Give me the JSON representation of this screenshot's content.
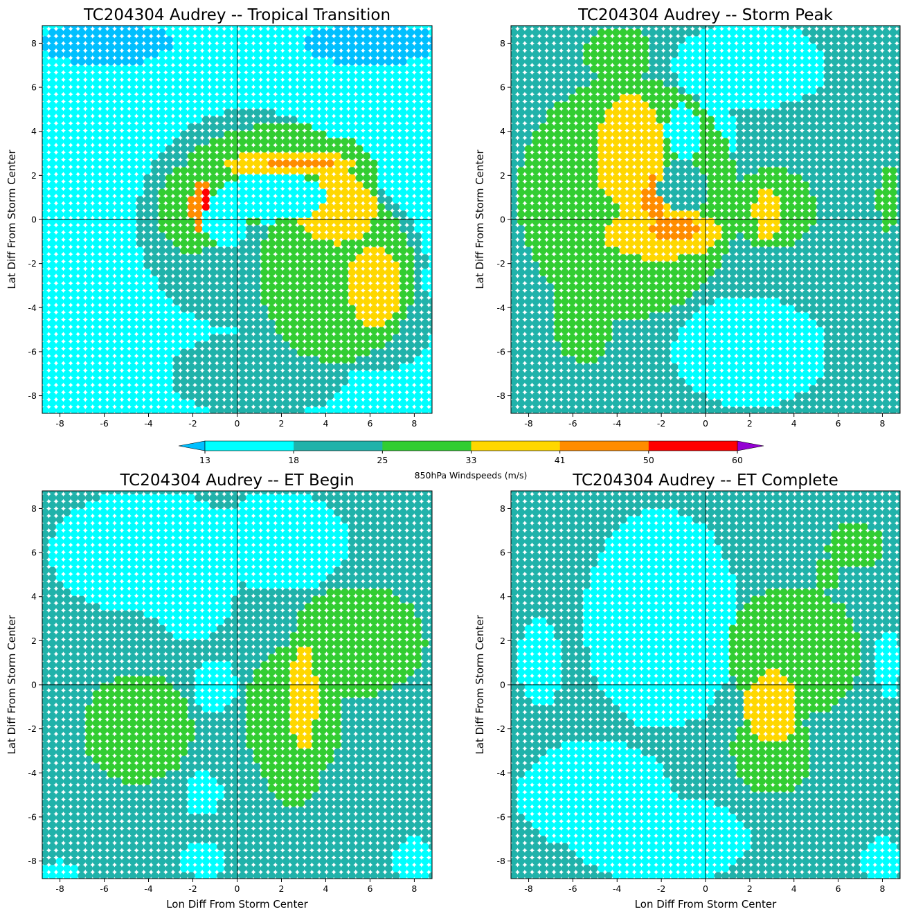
{
  "figure": {
    "colorbar": {
      "label": "850hPa Windspeeds (m/s)",
      "ticks": [
        13,
        18,
        25,
        33,
        41,
        50,
        60
      ],
      "colors": [
        "#00ffff",
        "#20b2aa",
        "#32cd32",
        "#ffd700",
        "#ff8c00",
        "#ff0000"
      ],
      "under_color": "#00bfff",
      "over_color": "#9400d3",
      "extend": "both"
    }
  },
  "chart_data": [
    {
      "type": "scatter",
      "title": "TC204304 Audrey -- Tropical Transition",
      "xlabel": "",
      "ylabel": "Lat Diff From Storm Center",
      "xlim": [
        -8.8,
        8.8
      ],
      "ylim": [
        -8.8,
        8.8
      ],
      "xticks": [
        -8,
        -6,
        -4,
        -2,
        0,
        2,
        4,
        6,
        8
      ],
      "yticks": [
        -8,
        -6,
        -4,
        -2,
        0,
        2,
        4,
        6,
        8
      ],
      "grid_spacing": 0.33,
      "crosshair": [
        0,
        0
      ],
      "features": [
        {
          "type": "rect",
          "x0": -9,
          "x1": 9,
          "y0": -9,
          "y1": 9,
          "v": 14
        },
        {
          "type": "ellipse",
          "cx": -7,
          "cy": 4,
          "rx": 2.5,
          "ry": 2,
          "v": 16
        },
        {
          "type": "ellipse",
          "cx": -5,
          "cy": -6,
          "rx": 4,
          "ry": 3,
          "v": 16
        },
        {
          "type": "ellipse",
          "cx": -8,
          "cy": -2,
          "rx": 2,
          "ry": 4,
          "v": 15.5
        },
        {
          "type": "ellipse",
          "cx": 1,
          "cy": -7,
          "rx": 4,
          "ry": 2,
          "v": 20
        },
        {
          "type": "ellipse",
          "cx": 0.5,
          "cy": 0,
          "rx": 5,
          "ry": 5,
          "v": 21
        },
        {
          "type": "ellipse",
          "cx": 4,
          "cy": -2,
          "rx": 4.5,
          "ry": 4,
          "v": 22
        },
        {
          "type": "ellipse",
          "cx": 6,
          "cy": -4.5,
          "rx": 3,
          "ry": 2.5,
          "v": 22
        },
        {
          "type": "ellipse",
          "cx": 4.5,
          "cy": -2.5,
          "rx": 3.5,
          "ry": 4,
          "v": 27
        },
        {
          "type": "ellipse",
          "cx": 2,
          "cy": 2,
          "rx": 4.5,
          "ry": 2.3,
          "v": 28
        },
        {
          "type": "ellipse",
          "cx": -2,
          "cy": 0.5,
          "rx": 1.6,
          "ry": 2,
          "v": 28
        },
        {
          "type": "ellipse",
          "cx": 2.5,
          "cy": 2.5,
          "rx": 3,
          "ry": 0.6,
          "v": 36
        },
        {
          "type": "ellipse",
          "cx": 4.5,
          "cy": 0.5,
          "rx": 1.8,
          "ry": 1.6,
          "v": 36
        },
        {
          "type": "ellipse",
          "cx": 6.2,
          "cy": -3,
          "rx": 1.2,
          "ry": 1.8,
          "v": 36
        },
        {
          "type": "ellipse",
          "cx": -1.6,
          "cy": 0.6,
          "rx": 0.5,
          "ry": 1.3,
          "v": 44
        },
        {
          "type": "ellipse",
          "cx": 2.8,
          "cy": 2.5,
          "rx": 1.5,
          "ry": 0.25,
          "v": 44
        },
        {
          "type": "ellipse",
          "cx": -1.4,
          "cy": 0.9,
          "rx": 0.25,
          "ry": 0.4,
          "v": 52
        },
        {
          "type": "ellipse",
          "cx": 1.5,
          "cy": 1,
          "rx": 2.5,
          "ry": 1.1,
          "v": 15
        },
        {
          "type": "ellipse",
          "cx": -0.5,
          "cy": 0,
          "rx": 1,
          "ry": 1.2,
          "v": 17
        },
        {
          "type": "ellipse",
          "cx": -6,
          "cy": 8,
          "rx": 3,
          "ry": 1,
          "v": 12
        },
        {
          "type": "ellipse",
          "cx": 6,
          "cy": 8,
          "rx": 3,
          "ry": 1,
          "v": 12
        },
        {
          "type": "ellipse",
          "cx": 6,
          "cy": 5,
          "rx": 3,
          "ry": 1.5,
          "v": 15
        }
      ]
    },
    {
      "type": "scatter",
      "title": "TC204304 Audrey -- Storm Peak",
      "xlabel": "",
      "ylabel": "Lat Diff From Storm Center",
      "xlim": [
        -8.8,
        8.8
      ],
      "ylim": [
        -8.8,
        8.8
      ],
      "xticks": [
        -8,
        -6,
        -4,
        -2,
        0,
        2,
        4,
        6,
        8
      ],
      "yticks": [
        -8,
        -6,
        -4,
        -2,
        0,
        2,
        4,
        6,
        8
      ],
      "grid_spacing": 0.33,
      "crosshair": [
        0,
        0
      ],
      "features": [
        {
          "type": "rect",
          "x0": -9,
          "x1": 9,
          "y0": -9,
          "y1": 9,
          "v": 21
        },
        {
          "type": "ellipse",
          "cx": 2,
          "cy": 7,
          "rx": 3.5,
          "ry": 2,
          "v": 16
        },
        {
          "type": "ellipse",
          "cx": 0,
          "cy": 4,
          "rx": 1.5,
          "ry": 1.5,
          "v": 14
        },
        {
          "type": "ellipse",
          "cx": -0.3,
          "cy": 0.8,
          "rx": 0.8,
          "ry": 1.6,
          "v": 14
        },
        {
          "type": "ellipse",
          "cx": 2,
          "cy": -6,
          "rx": 3.5,
          "ry": 2.5,
          "v": 16
        },
        {
          "type": "ellipse",
          "cx": -3.5,
          "cy": 1,
          "rx": 5,
          "ry": 5.5,
          "v": 28
        },
        {
          "type": "ellipse",
          "cx": -5.5,
          "cy": -4,
          "rx": 1.5,
          "ry": 2.5,
          "v": 28
        },
        {
          "type": "ellipse",
          "cx": 3,
          "cy": 0.5,
          "rx": 2,
          "ry": 1.8,
          "v": 28
        },
        {
          "type": "ellipse",
          "cx": -4,
          "cy": 7.5,
          "rx": 1.5,
          "ry": 1.3,
          "v": 28
        },
        {
          "type": "ellipse",
          "cx": -3.4,
          "cy": 3,
          "rx": 1.6,
          "ry": 2.6,
          "v": 36
        },
        {
          "type": "ellipse",
          "cx": -2,
          "cy": -0.6,
          "rx": 2.6,
          "ry": 1.2,
          "v": 36
        },
        {
          "type": "ellipse",
          "cx": 2.8,
          "cy": 0.3,
          "rx": 0.6,
          "ry": 1.2,
          "v": 36
        },
        {
          "type": "ellipse",
          "cx": -2.3,
          "cy": 1,
          "rx": 0.5,
          "ry": 1,
          "v": 44
        },
        {
          "type": "ellipse",
          "cx": -1.5,
          "cy": -0.4,
          "rx": 1.1,
          "ry": 0.5,
          "v": 44
        },
        {
          "type": "ellipse",
          "cx": -1,
          "cy": 1.5,
          "rx": 1.1,
          "ry": 1.2,
          "v": 21
        },
        {
          "type": "ellipse",
          "cx": -1,
          "cy": 4,
          "rx": 0.8,
          "ry": 1.2,
          "v": 16
        },
        {
          "type": "ellipse",
          "cx": 8.3,
          "cy": 1,
          "rx": 0.5,
          "ry": 1.5,
          "v": 27
        },
        {
          "type": "ellipse",
          "cx": 7.5,
          "cy": -7,
          "rx": 1.5,
          "ry": 1.5,
          "v": 21
        }
      ]
    },
    {
      "type": "scatter",
      "title": "TC204304 Audrey -- ET Begin",
      "xlabel": "Lon Diff From Storm Center",
      "ylabel": "Lat Diff From Storm Center",
      "xlim": [
        -8.8,
        8.8
      ],
      "ylim": [
        -8.8,
        8.8
      ],
      "xticks": [
        -8,
        -6,
        -4,
        -2,
        0,
        2,
        4,
        6,
        8
      ],
      "yticks": [
        -8,
        -6,
        -4,
        -2,
        0,
        2,
        4,
        6,
        8
      ],
      "grid_spacing": 0.33,
      "crosshair": [
        0,
        0
      ],
      "features": [
        {
          "type": "rect",
          "x0": -9,
          "x1": 9,
          "y0": -9,
          "y1": 9,
          "v": 21
        },
        {
          "type": "ellipse",
          "cx": -4,
          "cy": 6,
          "rx": 4.5,
          "ry": 2.8,
          "v": 16
        },
        {
          "type": "ellipse",
          "cx": 2,
          "cy": 6.5,
          "rx": 3,
          "ry": 2.3,
          "v": 16
        },
        {
          "type": "ellipse",
          "cx": -2,
          "cy": 5,
          "rx": 2,
          "ry": 3,
          "v": 14
        },
        {
          "type": "ellipse",
          "cx": -4.5,
          "cy": 7.5,
          "rx": 1.5,
          "ry": 1,
          "v": 14
        },
        {
          "type": "ellipse",
          "cx": -1,
          "cy": 0,
          "rx": 1,
          "ry": 1.2,
          "v": 14
        },
        {
          "type": "ellipse",
          "cx": -4.5,
          "cy": -2,
          "rx": 2.5,
          "ry": 2.5,
          "v": 28
        },
        {
          "type": "ellipse",
          "cx": 5.5,
          "cy": 2,
          "rx": 3,
          "ry": 2.5,
          "v": 28
        },
        {
          "type": "ellipse",
          "cx": 2.5,
          "cy": -1.5,
          "rx": 2.2,
          "ry": 3.2,
          "v": 28
        },
        {
          "type": "ellipse",
          "cx": 2.5,
          "cy": -4,
          "rx": 1.2,
          "ry": 1.5,
          "v": 28
        },
        {
          "type": "ellipse",
          "cx": 3,
          "cy": -0.5,
          "rx": 0.6,
          "ry": 2.4,
          "v": 36
        },
        {
          "type": "ellipse",
          "cx": -1.5,
          "cy": -5,
          "rx": 0.8,
          "ry": 1,
          "v": 16
        },
        {
          "type": "ellipse",
          "cx": -1.5,
          "cy": -8,
          "rx": 1,
          "ry": 0.8,
          "v": 16
        },
        {
          "type": "ellipse",
          "cx": 8,
          "cy": -8,
          "rx": 1,
          "ry": 1,
          "v": 16
        },
        {
          "type": "ellipse",
          "cx": -8,
          "cy": -8.5,
          "rx": 1,
          "ry": 0.5,
          "v": 16
        }
      ]
    },
    {
      "type": "scatter",
      "title": "TC204304 Audrey -- ET Complete",
      "xlabel": "Lon Diff From Storm Center",
      "ylabel": "Lat Diff From Storm Center",
      "xlim": [
        -8.8,
        8.8
      ],
      "ylim": [
        -8.8,
        8.8
      ],
      "xticks": [
        -8,
        -6,
        -4,
        -2,
        0,
        2,
        4,
        6,
        8
      ],
      "yticks": [
        -8,
        -6,
        -4,
        -2,
        0,
        2,
        4,
        6,
        8
      ],
      "grid_spacing": 0.33,
      "crosshair": [
        0,
        0
      ],
      "features": [
        {
          "type": "rect",
          "x0": -9,
          "x1": 9,
          "y0": -9,
          "y1": 9,
          "v": 21
        },
        {
          "type": "ellipse",
          "cx": -2,
          "cy": 3,
          "rx": 3.5,
          "ry": 5,
          "v": 16
        },
        {
          "type": "ellipse",
          "cx": -5,
          "cy": -5,
          "rx": 3.5,
          "ry": 2.5,
          "v": 16
        },
        {
          "type": "ellipse",
          "cx": -2,
          "cy": -7,
          "rx": 4,
          "ry": 2,
          "v": 16
        },
        {
          "type": "ellipse",
          "cx": -1,
          "cy": 4.5,
          "rx": 1.2,
          "ry": 2,
          "v": 14
        },
        {
          "type": "ellipse",
          "cx": -0.5,
          "cy": 0,
          "rx": 1,
          "ry": 1.6,
          "v": 14
        },
        {
          "type": "ellipse",
          "cx": 0,
          "cy": -7.5,
          "rx": 1.2,
          "ry": 1.2,
          "v": 14
        },
        {
          "type": "ellipse",
          "cx": -7.5,
          "cy": 1,
          "rx": 1,
          "ry": 2,
          "v": 16
        },
        {
          "type": "ellipse",
          "cx": 4,
          "cy": 1.5,
          "rx": 3,
          "ry": 3,
          "v": 28
        },
        {
          "type": "ellipse",
          "cx": 3,
          "cy": -3,
          "rx": 1.8,
          "ry": 2,
          "v": 28
        },
        {
          "type": "ellipse",
          "cx": 6.8,
          "cy": 6.3,
          "rx": 1.3,
          "ry": 1,
          "v": 28
        },
        {
          "type": "ellipse",
          "cx": 5.5,
          "cy": 5,
          "rx": 0.5,
          "ry": 0.8,
          "v": 28
        },
        {
          "type": "ellipse",
          "cx": 3,
          "cy": -1,
          "rx": 1.2,
          "ry": 1.6,
          "v": 36
        },
        {
          "type": "ellipse",
          "cx": 8,
          "cy": -8,
          "rx": 1,
          "ry": 1,
          "v": 16
        },
        {
          "type": "ellipse",
          "cx": 8.3,
          "cy": 1,
          "rx": 0.6,
          "ry": 1.5,
          "v": 16
        }
      ]
    }
  ]
}
